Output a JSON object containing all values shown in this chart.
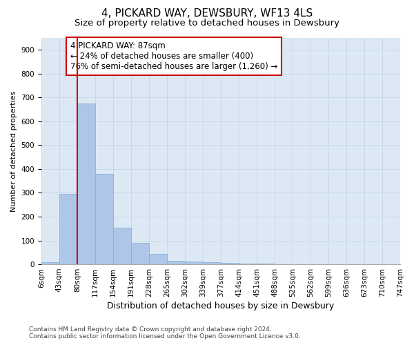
{
  "title": "4, PICKARD WAY, DEWSBURY, WF13 4LS",
  "subtitle": "Size of property relative to detached houses in Dewsbury",
  "xlabel": "Distribution of detached houses by size in Dewsbury",
  "ylabel": "Number of detached properties",
  "bar_values": [
    10,
    295,
    675,
    380,
    155,
    90,
    43,
    15,
    13,
    8,
    5,
    3,
    2,
    1,
    0,
    0,
    0,
    0,
    0,
    0
  ],
  "bin_labels": [
    "6sqm",
    "43sqm",
    "80sqm",
    "117sqm",
    "154sqm",
    "191sqm",
    "228sqm",
    "265sqm",
    "302sqm",
    "339sqm",
    "377sqm",
    "414sqm",
    "451sqm",
    "488sqm",
    "525sqm",
    "562sqm",
    "599sqm",
    "636sqm",
    "673sqm",
    "710sqm",
    "747sqm"
  ],
  "bar_color": "#aec6e8",
  "bar_edge_color": "#8ab4d8",
  "vline_x": 2.0,
  "vline_color": "#cc0000",
  "annotation_text": "4 PICKARD WAY: 87sqm\n← 24% of detached houses are smaller (400)\n76% of semi-detached houses are larger (1,260) →",
  "annotation_box_color": "#ffffff",
  "annotation_box_edge": "#cc0000",
  "ylim": [
    0,
    950
  ],
  "yticks": [
    0,
    100,
    200,
    300,
    400,
    500,
    600,
    700,
    800,
    900
  ],
  "grid_color": "#c8d8e8",
  "bg_color": "#dce9f5",
  "footer_line1": "Contains HM Land Registry data © Crown copyright and database right 2024.",
  "footer_line2": "Contains public sector information licensed under the Open Government Licence v3.0.",
  "title_fontsize": 11,
  "subtitle_fontsize": 9.5,
  "xlabel_fontsize": 9,
  "ylabel_fontsize": 8,
  "tick_fontsize": 7.5,
  "annotation_fontsize": 8.5,
  "footer_fontsize": 6.5
}
